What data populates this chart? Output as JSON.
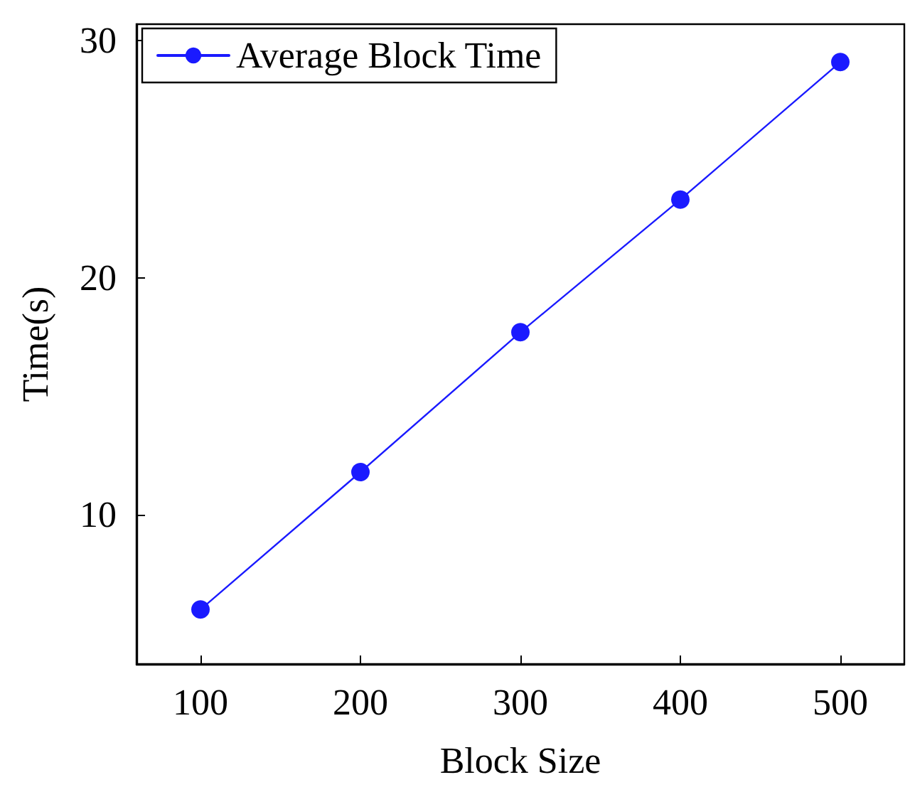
{
  "chart_data": {
    "type": "line",
    "xlabel": "Block Size",
    "ylabel": "Time(s)",
    "x": [
      100,
      200,
      300,
      400,
      500
    ],
    "series": [
      {
        "name": "Average Block Time",
        "color": "#1a1aff",
        "values": [
          6.0,
          11.8,
          17.7,
          23.3,
          29.1
        ]
      }
    ],
    "xlim": [
      60,
      540
    ],
    "xticks": [
      100,
      200,
      300,
      400,
      500
    ],
    "ylim": [
      3.7,
      30.7
    ],
    "yticks": [
      10,
      20,
      30
    ],
    "grid": false,
    "legend": "top left",
    "marker": "circle",
    "line_style": "solid"
  }
}
